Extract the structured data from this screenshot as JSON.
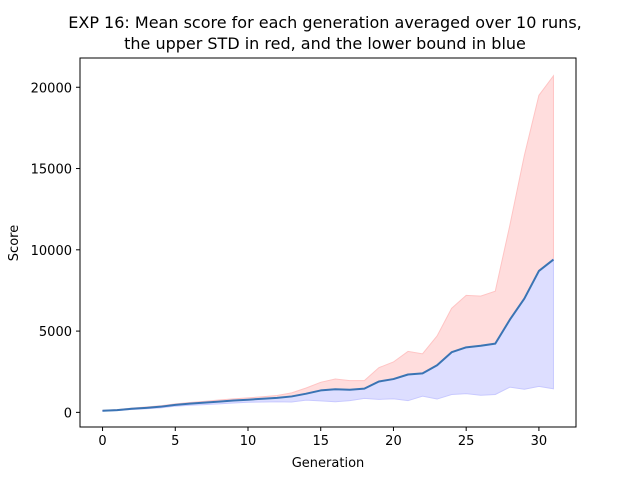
{
  "chart_data": {
    "type": "area",
    "title_lines": [
      "EXP 16: Mean score for each generation averaged over 10 runs,",
      "the upper STD in red, and the lower bound in blue"
    ],
    "xlabel": "Generation",
    "ylabel": "Score",
    "xlim": [
      -1.55,
      32.55
    ],
    "ylim": [
      -900,
      21800
    ],
    "xticks": [
      0,
      5,
      10,
      15,
      20,
      25,
      30
    ],
    "yticks": [
      0,
      5000,
      10000,
      15000,
      20000
    ],
    "grid": false,
    "colors": {
      "mean_line": "#3a74b4",
      "upper_fill": "#ffdddd",
      "upper_edge": "#ffc4c4",
      "lower_fill": "#dddeff",
      "lower_edge": "#c8c9ff"
    },
    "x": [
      0,
      1,
      2,
      3,
      4,
      5,
      6,
      7,
      8,
      9,
      10,
      11,
      12,
      13,
      14,
      15,
      16,
      17,
      18,
      19,
      20,
      21,
      22,
      23,
      24,
      25,
      26,
      27,
      28,
      29,
      30,
      31
    ],
    "series": [
      {
        "role": "mean",
        "values": [
          100,
          140,
          220,
          280,
          350,
          460,
          540,
          600,
          660,
          730,
          780,
          840,
          890,
          980,
          1150,
          1350,
          1420,
          1390,
          1460,
          1900,
          2050,
          2330,
          2400,
          2900,
          3700,
          4000,
          4100,
          4230,
          5700,
          7000,
          8700,
          9400
        ]
      },
      {
        "role": "upper",
        "values": [
          120,
          170,
          260,
          330,
          410,
          520,
          610,
          680,
          760,
          830,
          890,
          960,
          1040,
          1200,
          1500,
          1850,
          2050,
          1950,
          1950,
          2750,
          3100,
          3750,
          3600,
          4700,
          6400,
          7200,
          7150,
          7450,
          11500,
          15800,
          19500,
          20700
        ]
      },
      {
        "role": "lower",
        "values": [
          80,
          110,
          180,
          220,
          280,
          380,
          440,
          480,
          520,
          580,
          620,
          640,
          650,
          640,
          750,
          710,
          650,
          720,
          860,
          800,
          840,
          720,
          1000,
          820,
          1100,
          1150,
          1050,
          1100,
          1550,
          1420,
          1600,
          1450
        ]
      }
    ]
  }
}
